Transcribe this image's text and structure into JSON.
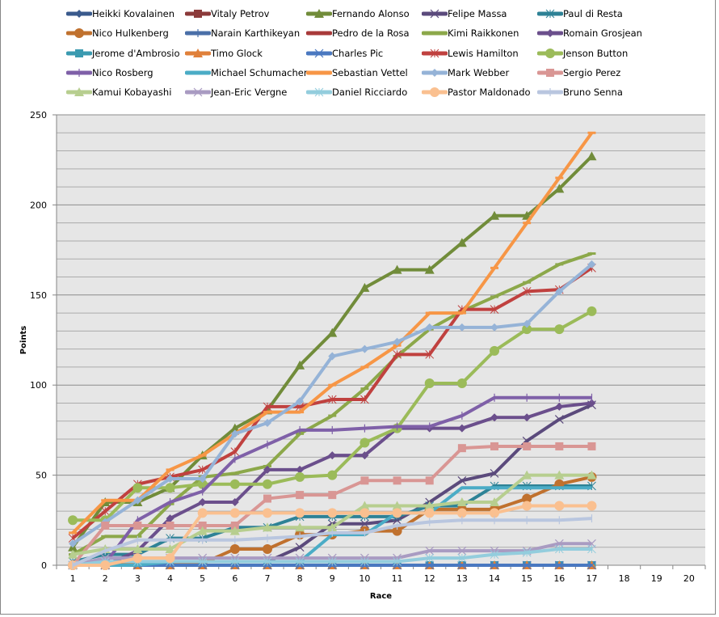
{
  "chart_data": {
    "type": "line",
    "title": "",
    "xlabel": "Race",
    "ylabel": "Points",
    "ylim": [
      0,
      250
    ],
    "yticks": [
      0,
      50,
      100,
      150,
      200,
      250
    ],
    "y_minor_step": 10,
    "x": [
      1,
      2,
      3,
      4,
      5,
      6,
      7,
      8,
      9,
      10,
      11,
      12,
      13,
      14,
      15,
      16,
      17,
      18,
      19,
      20
    ],
    "grid": true,
    "legend_position": "top",
    "series": [
      {
        "name": "Heikki Kovalainen",
        "color": "#3A5A8C",
        "marker": "diamond",
        "values": [
          0,
          0,
          0,
          0,
          0,
          0,
          0,
          0,
          0,
          0,
          0,
          0,
          0,
          0,
          0,
          0,
          0
        ]
      },
      {
        "name": "Vitaly Petrov",
        "color": "#8B3A3A",
        "marker": "square",
        "values": [
          0,
          0,
          0,
          0,
          0,
          0,
          0,
          0,
          0,
          0,
          0,
          0,
          0,
          0,
          0,
          0,
          0
        ]
      },
      {
        "name": "Fernando Alonso",
        "color": "#718C3A",
        "marker": "triangle",
        "values": [
          10,
          35,
          35,
          43,
          61,
          76,
          86,
          111,
          129,
          154,
          164,
          164,
          179,
          194,
          194,
          209,
          227
        ]
      },
      {
        "name": "Felipe Massa",
        "color": "#5B4A7C",
        "marker": "x",
        "values": [
          0,
          0,
          0,
          2,
          2,
          2,
          2,
          10,
          23,
          23,
          25,
          35,
          47,
          51,
          69,
          81,
          89
        ]
      },
      {
        "name": "Paul di Resta",
        "color": "#2E8296",
        "marker": "star",
        "values": [
          2,
          6,
          6,
          15,
          15,
          21,
          21,
          27,
          27,
          27,
          27,
          33,
          33,
          44,
          44,
          44,
          44
        ]
      },
      {
        "name": "Nico Hulkenberg",
        "color": "#C0712E",
        "marker": "circle",
        "values": [
          0,
          0,
          1,
          1,
          1,
          9,
          9,
          17,
          17,
          19,
          19,
          31,
          31,
          31,
          37,
          45,
          49
        ]
      },
      {
        "name": "Narain Karthikeyan",
        "color": "#4A6FA8",
        "marker": "plus",
        "values": [
          0,
          0,
          0,
          0,
          0,
          0,
          0,
          0,
          0,
          0,
          0,
          0,
          0,
          0,
          0,
          0,
          0
        ]
      },
      {
        "name": "Pedro de la Rosa",
        "color": "#A83A3A",
        "marker": "none",
        "values": [
          0,
          0,
          0,
          0,
          0,
          0,
          0,
          0,
          0,
          0,
          0,
          0,
          0,
          0,
          0,
          0,
          0
        ]
      },
      {
        "name": "Kimi Raikkonen",
        "color": "#8CA84A",
        "marker": "dash",
        "values": [
          6,
          16,
          16,
          34,
          49,
          51,
          55,
          73,
          83,
          98,
          116,
          131,
          141,
          149,
          157,
          167,
          173
        ]
      },
      {
        "name": "Romain Grosjean",
        "color": "#6B4F8C",
        "marker": "diamond",
        "values": [
          0,
          0,
          8,
          26,
          35,
          35,
          53,
          53,
          61,
          61,
          76,
          76,
          76,
          82,
          82,
          88,
          90
        ]
      },
      {
        "name": "Jerome d'Ambrosio",
        "color": "#3A9AB0",
        "marker": "square",
        "values": [
          0,
          0,
          0,
          0,
          0,
          0,
          0,
          0,
          0,
          0,
          0,
          0,
          0,
          0,
          0,
          0,
          0
        ]
      },
      {
        "name": "Timo Glock",
        "color": "#E0803A",
        "marker": "triangle",
        "values": [
          0,
          0,
          0,
          0,
          0,
          0,
          0,
          0,
          0,
          0,
          0,
          0,
          0,
          0,
          0,
          0,
          0
        ]
      },
      {
        "name": "Charles Pic",
        "color": "#4A78C0",
        "marker": "x",
        "values": [
          0,
          0,
          0,
          0,
          0,
          0,
          0,
          0,
          0,
          0,
          0,
          0,
          0,
          0,
          0,
          0,
          0
        ]
      },
      {
        "name": "Lewis Hamilton",
        "color": "#C0413F",
        "marker": "star",
        "values": [
          15,
          30,
          45,
          49,
          53,
          63,
          88,
          88,
          92,
          92,
          117,
          117,
          142,
          142,
          152,
          153,
          165
        ]
      },
      {
        "name": "Jenson Button",
        "color": "#9BBB59",
        "marker": "circle",
        "values": [
          25,
          25,
          43,
          43,
          45,
          45,
          45,
          49,
          50,
          68,
          76,
          101,
          101,
          119,
          131,
          131,
          141
        ]
      },
      {
        "name": "Nico Rosberg",
        "color": "#7F60A8",
        "marker": "plus",
        "values": [
          0,
          1,
          25,
          35,
          41,
          59,
          67,
          75,
          75,
          76,
          77,
          77,
          83,
          93,
          93,
          93,
          93
        ]
      },
      {
        "name": "Michael Schumacher",
        "color": "#4BACC6",
        "marker": "none",
        "values": [
          0,
          0,
          0,
          2,
          2,
          2,
          2,
          2,
          17,
          17,
          29,
          29,
          43,
          43,
          43,
          43,
          43
        ]
      },
      {
        "name": "Sebastian Vettel",
        "color": "#F79646",
        "marker": "dash",
        "values": [
          18,
          36,
          36,
          53,
          61,
          73,
          85,
          85,
          100,
          110,
          122,
          140,
          140,
          165,
          190,
          215,
          240
        ]
      },
      {
        "name": "Mark Webber",
        "color": "#95B3D7",
        "marker": "diamond",
        "values": [
          12,
          24,
          36,
          48,
          48,
          73,
          79,
          91,
          116,
          120,
          124,
          132,
          132,
          132,
          134,
          152,
          167
        ]
      },
      {
        "name": "Sergio Perez",
        "color": "#D99694",
        "marker": "square",
        "values": [
          0,
          22,
          22,
          22,
          22,
          22,
          37,
          39,
          39,
          47,
          47,
          47,
          65,
          66,
          66,
          66,
          66
        ]
      },
      {
        "name": "Kamui Kobayashi",
        "color": "#B7CE8F",
        "marker": "triangle",
        "values": [
          6,
          9,
          9,
          9,
          19,
          19,
          21,
          21,
          21,
          33,
          33,
          33,
          35,
          35,
          50,
          50,
          50
        ]
      },
      {
        "name": "Jean-Eric Vergne",
        "color": "#A99BC2",
        "marker": "x",
        "values": [
          0,
          4,
          4,
          4,
          4,
          4,
          4,
          4,
          4,
          4,
          4,
          8,
          8,
          8,
          8,
          12,
          12
        ]
      },
      {
        "name": "Daniel Ricciardo",
        "color": "#93CDDD",
        "marker": "star",
        "values": [
          0,
          2,
          2,
          2,
          2,
          2,
          2,
          2,
          2,
          2,
          2,
          4,
          4,
          6,
          7,
          9,
          9
        ]
      },
      {
        "name": "Pastor Maldonado",
        "color": "#FAC090",
        "marker": "circle",
        "values": [
          0,
          0,
          4,
          4,
          29,
          29,
          29,
          29,
          29,
          29,
          29,
          29,
          29,
          29,
          33,
          33,
          33
        ]
      },
      {
        "name": "Bruno Senna",
        "color": "#B9C6DF",
        "marker": "plus",
        "values": [
          0,
          8,
          14,
          14,
          14,
          14,
          15,
          16,
          18,
          18,
          22,
          24,
          25,
          25,
          25,
          25,
          26
        ]
      }
    ]
  }
}
